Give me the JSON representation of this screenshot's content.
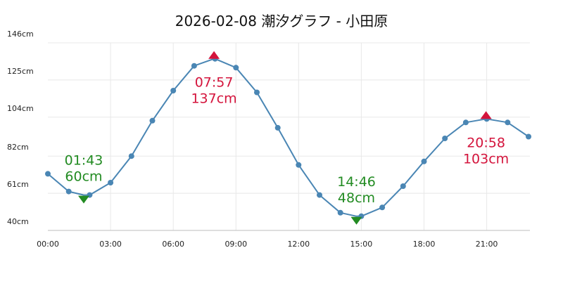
{
  "title": "2026-02-08 潮汐グラフ - 小田原",
  "colors": {
    "line": "#4a86b4",
    "high_tide": "#d4143c",
    "low_tide": "#228b22",
    "grid": "#e8e8e8",
    "axis": "#c9c9c9",
    "tick_text": "#222222",
    "title_text": "#111111",
    "background": "#ffffff"
  },
  "chart_data": {
    "type": "line",
    "title": "2026-02-08 潮汐グラフ - 小田原",
    "date": "2026-02-08",
    "location": "小田原",
    "xlabel": "",
    "ylabel": "",
    "x_unit": "hour",
    "y_unit": "cm",
    "x": [
      0,
      1,
      2,
      3,
      4,
      5,
      6,
      7,
      8,
      9,
      10,
      11,
      12,
      13,
      14,
      15,
      16,
      17,
      18,
      19,
      20,
      21,
      22,
      23
    ],
    "values": [
      72,
      62,
      60,
      67,
      82,
      102,
      119,
      133,
      137,
      132,
      118,
      98,
      77,
      60,
      50,
      48,
      53,
      65,
      79,
      92,
      101,
      103,
      101,
      93
    ],
    "ylim": [
      40,
      146
    ],
    "xlim_hours": [
      0,
      23
    ],
    "grid": true,
    "legend": false,
    "y_ticks": [
      {
        "value": 146,
        "label": "146cm"
      },
      {
        "value": 125,
        "label": "125cm"
      },
      {
        "value": 104,
        "label": "104cm"
      },
      {
        "value": 82,
        "label": "82cm"
      },
      {
        "value": 61,
        "label": "61cm"
      },
      {
        "value": 40,
        "label": "40cm"
      }
    ],
    "x_ticks": [
      {
        "hour": 0,
        "label": "00:00"
      },
      {
        "hour": 3,
        "label": "03:00"
      },
      {
        "hour": 6,
        "label": "06:00"
      },
      {
        "hour": 9,
        "label": "09:00"
      },
      {
        "hour": 12,
        "label": "12:00"
      },
      {
        "hour": 15,
        "label": "15:00"
      },
      {
        "hour": 18,
        "label": "18:00"
      },
      {
        "hour": 21,
        "label": "21:00"
      }
    ],
    "extremes": [
      {
        "kind": "low",
        "time": "01:43",
        "hour": 1.7167,
        "value": 60,
        "value_label": "60cm"
      },
      {
        "kind": "high",
        "time": "07:57",
        "hour": 7.95,
        "value": 137,
        "value_label": "137cm"
      },
      {
        "kind": "low",
        "time": "14:46",
        "hour": 14.7667,
        "value": 48,
        "value_label": "48cm"
      },
      {
        "kind": "high",
        "time": "20:58",
        "hour": 20.9667,
        "value": 103,
        "value_label": "103cm"
      }
    ]
  }
}
